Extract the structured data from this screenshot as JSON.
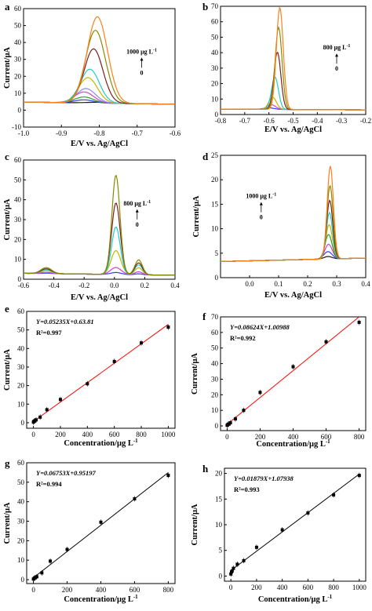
{
  "chart_data": [
    {
      "panel": "a",
      "type": "line",
      "xlabel": "E/V vs. Ag/AgCl",
      "ylabel": "Current/μA",
      "xlim": [
        -1.0,
        -0.6
      ],
      "ylim": [
        -10,
        60
      ],
      "xticks": [
        "-1.0",
        "-0.9",
        "-0.8",
        "-0.7",
        "-0.6"
      ],
      "yticks": [
        "-10",
        "0",
        "10",
        "20",
        "30",
        "40",
        "50",
        "60"
      ],
      "annotation": {
        "top": "1000 μg L",
        "sup": "-1",
        "bottom": "0"
      },
      "baseline": {
        "start": 4.8,
        "end": 3.5
      },
      "series": [
        {
          "color": "#1a1a1a",
          "peak_x": -0.8,
          "peak_y": 0.5,
          "width": 0.045
        },
        {
          "color": "#3a3aff",
          "peak_x": -0.84,
          "peak_y": 1.8,
          "width": 0.035
        },
        {
          "color": "#2aa02a",
          "peak_x": -0.84,
          "peak_y": 3.5,
          "width": 0.035
        },
        {
          "color": "#cc44cc",
          "peak_x": -0.84,
          "peak_y": 6.5,
          "width": 0.035
        },
        {
          "color": "#8a8aff",
          "peak_x": -0.835,
          "peak_y": 8.5,
          "width": 0.035
        },
        {
          "color": "#c8b400",
          "peak_x": -0.83,
          "peak_y": 15.0,
          "width": 0.035
        },
        {
          "color": "#22cccc",
          "peak_x": -0.825,
          "peak_y": 20.0,
          "width": 0.035
        },
        {
          "color": "#7a1f1f",
          "peak_x": -0.815,
          "peak_y": 32.0,
          "width": 0.035
        },
        {
          "color": "#8a8a00",
          "peak_x": -0.81,
          "peak_y": 43.0,
          "width": 0.037
        },
        {
          "color": "#ff7f1a",
          "peak_x": -0.805,
          "peak_y": 51.0,
          "width": 0.038
        }
      ]
    },
    {
      "panel": "b",
      "type": "line",
      "xlabel": "E/V vs. Ag/AgCl",
      "ylabel": "",
      "xlim": [
        -0.8,
        -0.2
      ],
      "ylim": [
        0,
        70
      ],
      "xticks": [
        "-0.8",
        "-0.7",
        "-0.6",
        "-0.5",
        "-0.4",
        "-0.3",
        "-0.2"
      ],
      "yticks": [
        "0",
        "10",
        "20",
        "30",
        "40",
        "50",
        "60",
        "70"
      ],
      "annotation": {
        "top": "800 μg L",
        "sup": "-1",
        "bottom": "0"
      },
      "baseline": {
        "start": 3.5,
        "end": 3.0
      },
      "series": [
        {
          "color": "#3a3aff",
          "peak_x": -0.6,
          "peak_y": 1.0,
          "width": 0.03
        },
        {
          "color": "#cc44cc",
          "peak_x": -0.59,
          "peak_y": 3.0,
          "width": 0.025
        },
        {
          "color": "#c8b400",
          "peak_x": -0.585,
          "peak_y": 8.0,
          "width": 0.022
        },
        {
          "color": "#22cccc",
          "peak_x": -0.575,
          "peak_y": 21.0,
          "width": 0.02
        },
        {
          "color": "#7a1f1f",
          "peak_x": -0.565,
          "peak_y": 37.0,
          "width": 0.02
        },
        {
          "color": "#8a8a00",
          "peak_x": -0.56,
          "peak_y": 53.0,
          "width": 0.02
        },
        {
          "color": "#ff7f1a",
          "peak_x": -0.555,
          "peak_y": 66.0,
          "width": 0.02
        }
      ]
    },
    {
      "panel": "c",
      "type": "line",
      "xlabel": "E/V vs. Ag/AgCl",
      "ylabel": "Current/μA",
      "xlim": [
        -0.6,
        0.4
      ],
      "ylim": [
        0,
        60
      ],
      "xticks": [
        "-0.6",
        "-0.4",
        "-0.2",
        "0.0",
        "0.2",
        "0.4"
      ],
      "yticks": [
        "0",
        "10",
        "20",
        "30",
        "40",
        "50",
        "60"
      ],
      "annotation": {
        "top": "800 μg L",
        "sup": "-1",
        "bottom": "0"
      },
      "baseline": {
        "start": 3.0,
        "end": 2.0
      },
      "series": [
        {
          "color": "#3a3aff",
          "peak_x": 0.01,
          "peak_y": 1.0,
          "width": 0.05,
          "side": 0.5
        },
        {
          "color": "#cc44cc",
          "peak_x": 0.01,
          "peak_y": 3.5,
          "width": 0.05,
          "side": 1.5
        },
        {
          "color": "#c8b400",
          "peak_x": 0.01,
          "peak_y": 12.0,
          "width": 0.045,
          "side": 3.5
        },
        {
          "color": "#22cccc",
          "peak_x": 0.01,
          "peak_y": 24.0,
          "width": 0.04,
          "side": 5.0
        },
        {
          "color": "#7a1f1f",
          "peak_x": 0.01,
          "peak_y": 36.0,
          "width": 0.04,
          "side": 6.0
        },
        {
          "color": "#8a8a00",
          "peak_x": 0.01,
          "peak_y": 50.0,
          "width": 0.038,
          "side": 7.5
        }
      ]
    },
    {
      "panel": "d",
      "type": "line",
      "xlabel": "E/V vs. Ag/AgCl",
      "ylabel": "Current/μA",
      "xlim": [
        -0.1,
        0.4
      ],
      "ylim": [
        0,
        25
      ],
      "xticks": [
        "0.0",
        "0.1",
        "0.2",
        "0.3",
        "0.4"
      ],
      "yticks": [
        "0",
        "5",
        "10",
        "15",
        "20",
        "25"
      ],
      "annotation": {
        "top": "1000 μg L",
        "sup": "-1",
        "bottom": "0"
      },
      "baseline": {
        "start": 3.3,
        "end": 4.0
      },
      "series": [
        {
          "color": "#1a1a1a",
          "peak_x": 0.27,
          "peak_y": 0.5,
          "width": 0.02
        },
        {
          "color": "#3a3aff",
          "peak_x": 0.27,
          "peak_y": 1.5,
          "width": 0.02
        },
        {
          "color": "#cc44cc",
          "peak_x": 0.272,
          "peak_y": 3.0,
          "width": 0.018
        },
        {
          "color": "#2aa02a",
          "peak_x": 0.272,
          "peak_y": 5.0,
          "width": 0.017
        },
        {
          "color": "#c8b400",
          "peak_x": 0.274,
          "peak_y": 7.0,
          "width": 0.016
        },
        {
          "color": "#22cccc",
          "peak_x": 0.275,
          "peak_y": 9.5,
          "width": 0.015
        },
        {
          "color": "#7a1f1f",
          "peak_x": 0.276,
          "peak_y": 12.0,
          "width": 0.015
        },
        {
          "color": "#8a8a00",
          "peak_x": 0.277,
          "peak_y": 15.0,
          "width": 0.015
        },
        {
          "color": "#ff7f1a",
          "peak_x": 0.278,
          "peak_y": 19.0,
          "width": 0.015
        }
      ]
    },
    {
      "panel": "e",
      "type": "scatter",
      "xlabel": "Concentration/μg L",
      "xlabel_sup": "-1",
      "ylabel": "Current/μA",
      "xlim": [
        -50,
        1050
      ],
      "ylim": [
        -3,
        60
      ],
      "xticks": [
        0,
        200,
        400,
        600,
        800,
        1000
      ],
      "yticks": [
        0,
        10,
        20,
        30,
        40,
        50,
        60
      ],
      "equation": "Y=0.05235X+0.63.81",
      "r2": "R²=0.997",
      "fit": {
        "slope": 0.05235,
        "intercept": 0.6381,
        "color": "#ff0000"
      },
      "x": [
        0,
        5,
        10,
        20,
        50,
        100,
        200,
        400,
        600,
        800,
        1000
      ],
      "y": [
        0.3,
        0.8,
        1.0,
        1.5,
        3.0,
        7.0,
        12.5,
        21.0,
        33.0,
        43.0,
        51.5
      ]
    },
    {
      "panel": "f",
      "type": "scatter",
      "xlabel": "Concentration/μg L",
      "xlabel_sup": "-1",
      "ylabel": "Current/μA",
      "xlim": [
        -40,
        840
      ],
      "ylim": [
        -3,
        70
      ],
      "xticks": [
        0,
        200,
        400,
        600,
        800
      ],
      "yticks": [
        0,
        10,
        20,
        30,
        40,
        50,
        60,
        70
      ],
      "equation": "Y=0.08624X+1.00988",
      "r2": "R²=0.992",
      "fit": {
        "slope": 0.08624,
        "intercept": 1.00988,
        "color": "#ff0000"
      },
      "x": [
        0,
        5,
        10,
        20,
        50,
        100,
        200,
        400,
        600,
        800
      ],
      "y": [
        0.4,
        1.0,
        1.2,
        2.0,
        4.5,
        10.0,
        21.5,
        38.0,
        54.0,
        66.5
      ]
    },
    {
      "panel": "g",
      "type": "scatter",
      "xlabel": "Concentration/μg L",
      "xlabel_sup": "-1",
      "ylabel": "Current/μA",
      "xlim": [
        -40,
        840
      ],
      "ylim": [
        -2,
        60
      ],
      "xticks": [
        0,
        200,
        400,
        600,
        800
      ],
      "yticks": [
        0,
        10,
        20,
        30,
        40,
        50,
        60
      ],
      "equation": "Y=0.06753X+0.95197",
      "r2": "R²=0.994",
      "fit": {
        "slope": 0.06753,
        "intercept": 0.95197,
        "color": "#000000"
      },
      "x": [
        0,
        5,
        10,
        20,
        50,
        100,
        200,
        400,
        600,
        800
      ],
      "y": [
        0.3,
        0.7,
        1.0,
        1.5,
        3.5,
        9.5,
        15.5,
        29.5,
        41.5,
        53.5
      ]
    },
    {
      "panel": "h",
      "type": "scatter",
      "xlabel": "Concentration/μg L",
      "xlabel_sup": "-1",
      "ylabel": "Current/μA",
      "xlim": [
        -50,
        1050
      ],
      "ylim": [
        -1,
        21
      ],
      "xticks": [
        0,
        200,
        400,
        600,
        800,
        1000
      ],
      "yticks": [
        0,
        5,
        10,
        15,
        20
      ],
      "equation": "Y=0.01879X+1.07938",
      "r2": "R²=0.993",
      "fit": {
        "slope": 0.01879,
        "intercept": 1.07938,
        "color": "#000000"
      },
      "x": [
        0,
        5,
        10,
        20,
        50,
        100,
        200,
        400,
        600,
        800,
        1000
      ],
      "y": [
        0.4,
        0.8,
        1.0,
        1.5,
        2.3,
        3.0,
        5.6,
        9.0,
        12.3,
        15.8,
        19.6
      ]
    }
  ]
}
